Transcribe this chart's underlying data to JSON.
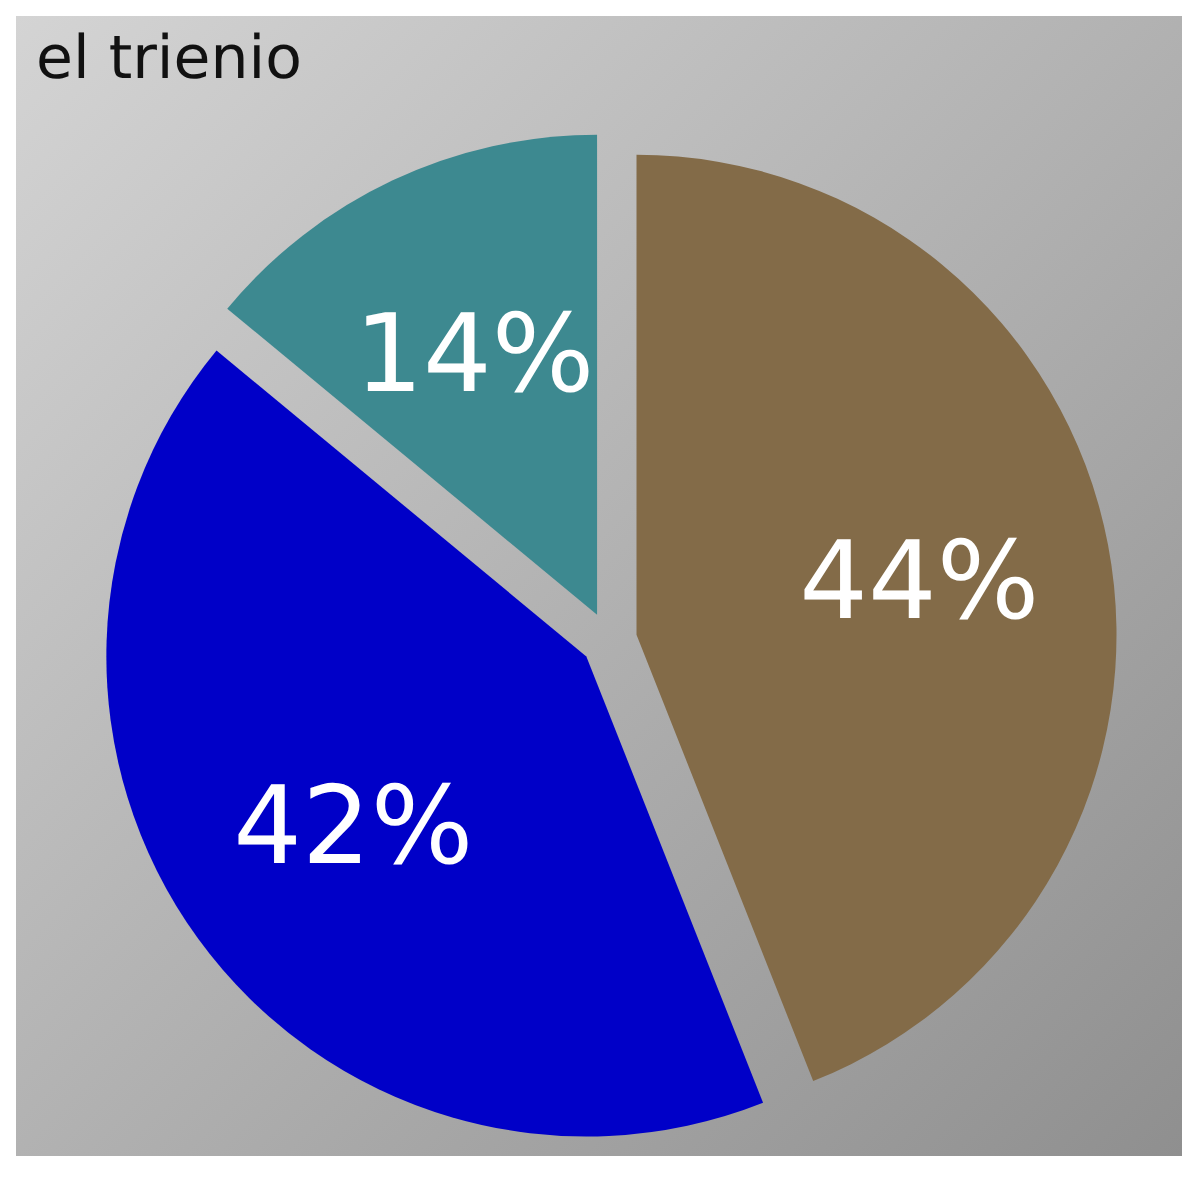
{
  "chart_data": {
    "type": "pie",
    "title": "el trienio",
    "categories": [
      null,
      null,
      null
    ],
    "values": [
      44,
      42,
      14
    ],
    "colors": [
      "#836b48",
      "#0000c8",
      "#3d8990"
    ],
    "value_labels": [
      "44%",
      "42%",
      "14%"
    ]
  }
}
